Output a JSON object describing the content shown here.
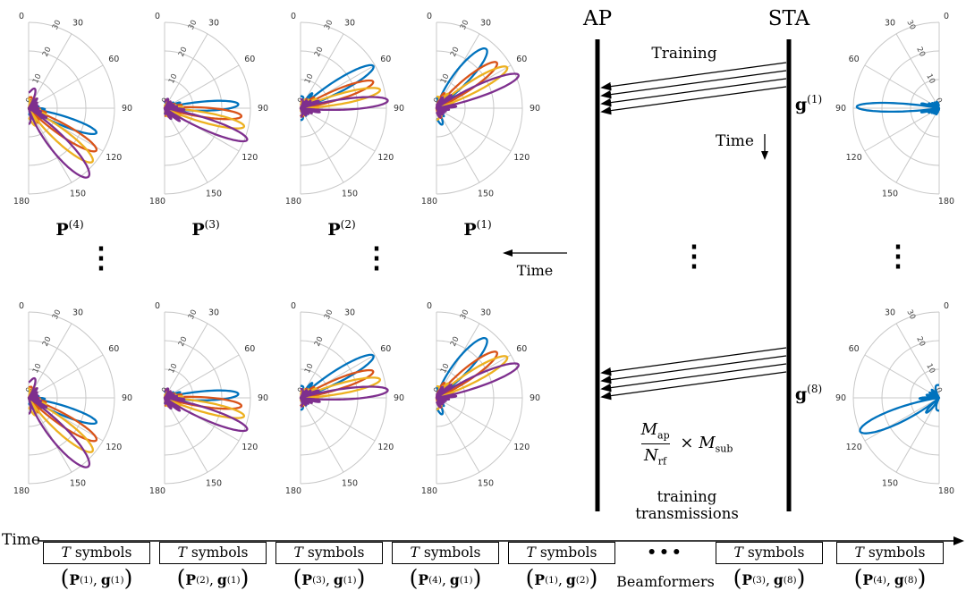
{
  "palette": {
    "blue": "#0072BD",
    "orange": "#D95319",
    "yellow": "#EDB120",
    "purple": "#7E2F8E",
    "grid": "#c8c8c8"
  },
  "vdots": "⋮",
  "polar": {
    "radial_ticks": [
      "0",
      "10",
      "20",
      "30"
    ],
    "angle_ticks": [
      "0",
      "30",
      "60",
      "90",
      "120",
      "150",
      "180"
    ],
    "p_plots": [
      {
        "label_base": "P",
        "label_exp": "(4)",
        "beams": [
          {
            "color": "blue",
            "angle": 110,
            "amp": 0.84
          },
          {
            "color": "orange",
            "angle": 122,
            "amp": 0.93
          },
          {
            "color": "yellow",
            "angle": 130,
            "amp": 0.97
          },
          {
            "color": "purple",
            "angle": 139,
            "amp": 1.06
          }
        ]
      },
      {
        "label_base": "P",
        "label_exp": "(3)",
        "beams": [
          {
            "color": "blue",
            "angle": 87,
            "amp": 0.86
          },
          {
            "color": "orange",
            "angle": 96,
            "amp": 0.9
          },
          {
            "color": "yellow",
            "angle": 103,
            "amp": 0.95
          },
          {
            "color": "purple",
            "angle": 111,
            "amp": 1.03
          }
        ]
      },
      {
        "label_base": "P",
        "label_exp": "(2)",
        "beams": [
          {
            "color": "blue",
            "angle": 60,
            "amp": 0.98
          },
          {
            "color": "orange",
            "angle": 70,
            "amp": 0.9
          },
          {
            "color": "yellow",
            "angle": 77,
            "amp": 0.95
          },
          {
            "color": "purple",
            "angle": 85,
            "amp": 1.02
          }
        ]
      },
      {
        "label_base": "P",
        "label_exp": "(1)",
        "beams": [
          {
            "color": "blue",
            "angle": 40,
            "amp": 0.9
          },
          {
            "color": "orange",
            "angle": 53,
            "amp": 0.88
          },
          {
            "color": "yellow",
            "angle": 60,
            "amp": 0.95
          },
          {
            "color": "purple",
            "angle": 68,
            "amp": 1.03
          }
        ]
      }
    ],
    "g_plots": [
      {
        "label_base": "g",
        "label_exp": "(1)",
        "beams": [
          {
            "color": "blue",
            "angle": 89,
            "amp": 0.96,
            "n": 12
          }
        ]
      },
      {
        "label_base": "g",
        "label_exp": "(8)",
        "beams": [
          {
            "color": "blue",
            "angle": 113,
            "amp": 1.0,
            "n": 8
          }
        ]
      }
    ]
  },
  "sequence": {
    "ap_label": "AP",
    "sta_label": "STA",
    "training_label": "Training",
    "time_label": "Time",
    "fraction": {
      "num_base": "M",
      "num_sub": "ap",
      "den_base": "N",
      "den_sub": "rf",
      "times": "×",
      "m2_base": "M",
      "m2_sub": "sub"
    },
    "caption": "training transmissions"
  },
  "mid_time_label": "Time",
  "timeline": {
    "time_label": "Time",
    "t": "T",
    "symbols_word": "symbols",
    "lparen": "(",
    "rparen": ")",
    "comma": ",",
    "p_base": "P",
    "g_base": "g",
    "dots": "•••",
    "beamformers": "Beamformers",
    "slots": [
      {
        "pe": "(1)",
        "ge": "(1)"
      },
      {
        "pe": "(2)",
        "ge": "(1)"
      },
      {
        "pe": "(3)",
        "ge": "(1)"
      },
      {
        "pe": "(4)",
        "ge": "(1)"
      },
      {
        "pe": "(1)",
        "ge": "(2)"
      },
      {
        "pe": "(3)",
        "ge": "(8)"
      },
      {
        "pe": "(4)",
        "ge": "(8)"
      }
    ]
  }
}
